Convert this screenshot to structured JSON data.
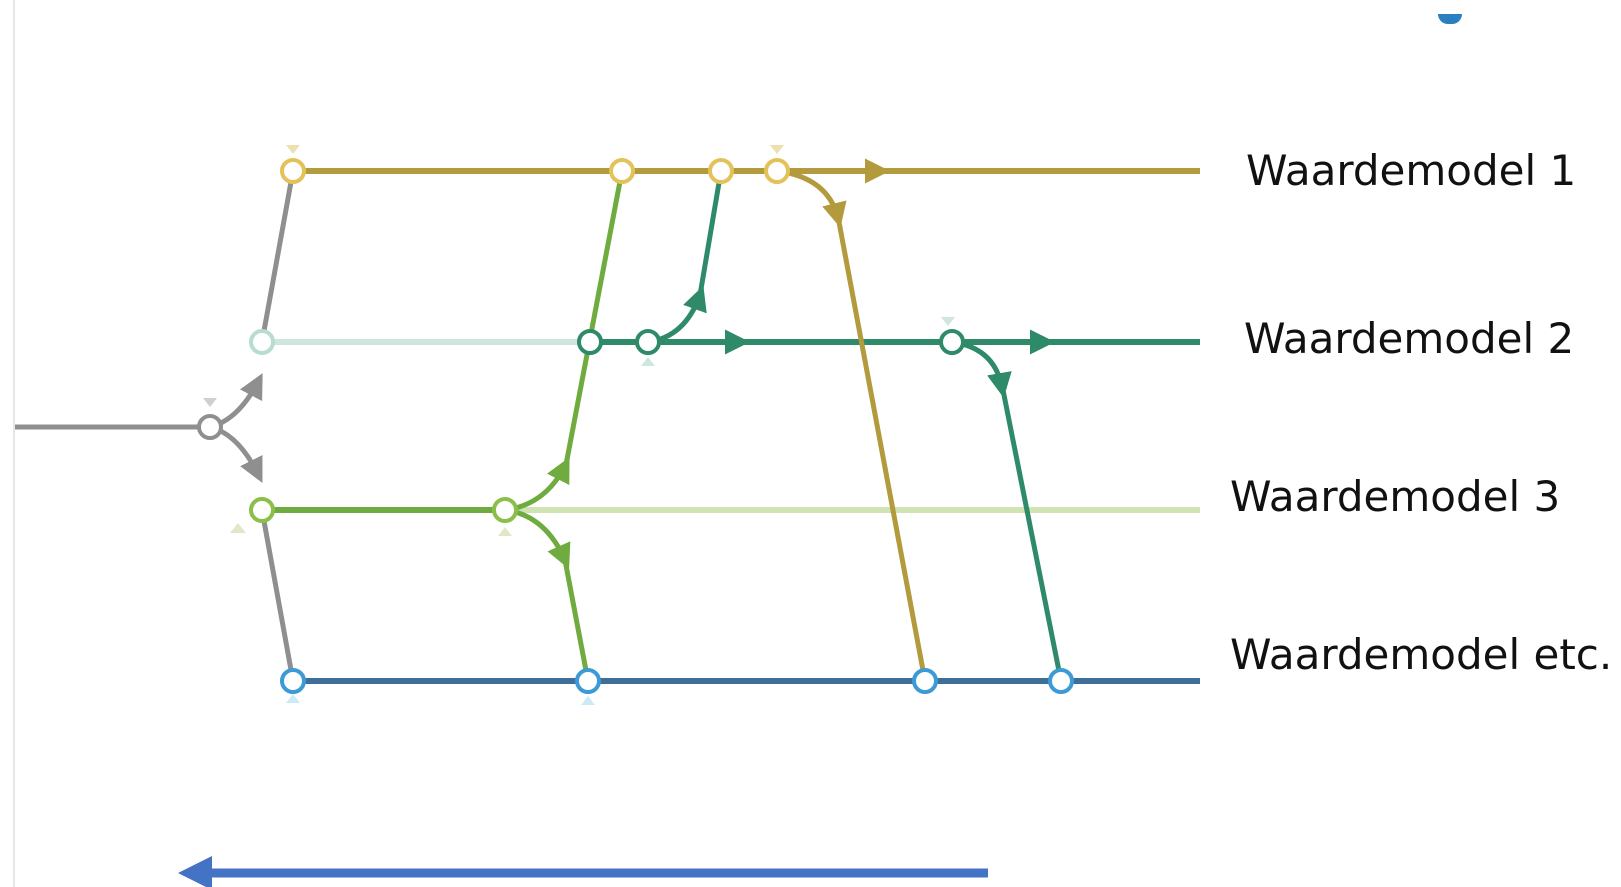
{
  "lanes": [
    {
      "id": "lane1",
      "label": "Waardemodel 1",
      "color": "#b39a3c",
      "node_color": "#e3c25a"
    },
    {
      "id": "lane2",
      "label": "Waardemodel 2",
      "color": "#2e8a68",
      "node_color": "#2e8a68"
    },
    {
      "id": "lane3",
      "label": "Waardemodel 3",
      "color": "#6fab3e",
      "node_color": "#8cbf4a",
      "faded_color": "#cfe3b5"
    },
    {
      "id": "lane4",
      "label": "Waardemodel etc.",
      "color": "#3f6f96",
      "node_color": "#3c9ad4"
    }
  ],
  "colors": {
    "trunk": "#8f8f8f",
    "lane2_faded": "#cfe6de",
    "direction_arrow": "#4472c4",
    "accent_mark": "#2a7fc0"
  },
  "direction_arrow": {
    "direction": "left"
  }
}
